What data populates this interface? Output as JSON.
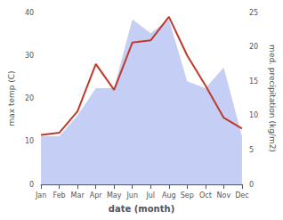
{
  "chart_data": {
    "type": "line",
    "xlabel": "date (month)",
    "ylabel": "max temp (C)",
    "y2label": "med. precipitation (kg/m2)",
    "categories": [
      "Jan",
      "Feb",
      "Mar",
      "Apr",
      "May",
      "Jun",
      "Jul",
      "Aug",
      "Sep",
      "Oct",
      "Nov",
      "Dec"
    ],
    "series": [
      {
        "type": "area",
        "color": "#c5cff5",
        "axis": "y2",
        "values": [
          7.0,
          7.0,
          10.0,
          14.0,
          14.0,
          24.0,
          22.0,
          24.0,
          15.0,
          14.0,
          17.0,
          7.0
        ]
      },
      {
        "type": "line",
        "color": "#c0392b",
        "values": [
          11.5,
          12.0,
          17.0,
          28.0,
          22.0,
          33.0,
          33.5,
          39.0,
          30.0,
          23.0,
          15.5,
          13.0
        ]
      }
    ],
    "ylim": [
      0,
      40
    ],
    "yticks": [
      0,
      10,
      20,
      30,
      40
    ],
    "y2lim": [
      0,
      25
    ],
    "y2ticks": [
      0,
      5,
      10,
      15,
      20,
      25
    ],
    "grid": false
  }
}
